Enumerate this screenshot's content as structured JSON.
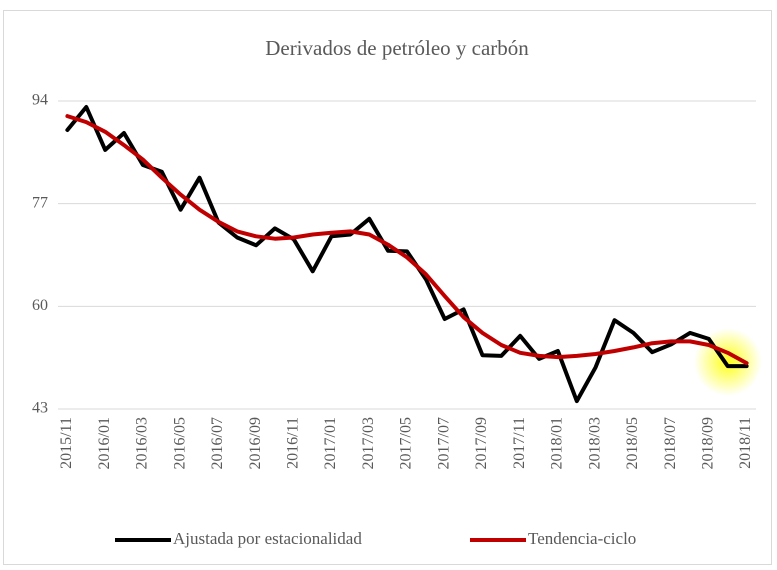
{
  "chart_data": {
    "type": "line",
    "title": "Derivados de petróleo y carbón",
    "categories": [
      "2015/11",
      null,
      "2016/01",
      null,
      "2016/03",
      null,
      "2016/05",
      null,
      "2016/07",
      null,
      "2016/09",
      null,
      "2016/11",
      null,
      "2017/01",
      null,
      "2017/03",
      null,
      "2017/05",
      null,
      "2017/07",
      null,
      "2017/09",
      null,
      "2017/11",
      null,
      "2018/01",
      null,
      "2018/03",
      null,
      "2018/05",
      null,
      "2018/07",
      null,
      "2018/09",
      null,
      "2018/11"
    ],
    "series": [
      {
        "name": "Ajustada por estacionalidad",
        "color": "#000000",
        "values": [
          89.2,
          93,
          85.9,
          88.7,
          83.4,
          82.3,
          76,
          81.3,
          73.9,
          71.4,
          70.1,
          72.9,
          71.1,
          65.8,
          71.6,
          71.9,
          74.5,
          69.2,
          69.1,
          64.5,
          57.9,
          59.5,
          51.9,
          51.8,
          55.1,
          51.3,
          52.6,
          44.3,
          49.9,
          57.7,
          55.6,
          52.4,
          53.7,
          55.6,
          54.6,
          50.1,
          50.1
        ]
      },
      {
        "name": "Tendencia-ciclo",
        "color": "#c00000",
        "values": [
          91.5,
          90.5,
          88.9,
          86.7,
          84.3,
          81.3,
          78.5,
          76,
          74,
          72.4,
          71.6,
          71.2,
          71.4,
          71.9,
          72.2,
          72.4,
          71.9,
          70.2,
          68.1,
          65.3,
          61.7,
          58.2,
          55.6,
          53.6,
          52.3,
          51.8,
          51.6,
          51.8,
          52.1,
          52.6,
          53.2,
          53.9,
          54.2,
          54.2,
          53.6,
          52.3,
          50.6
        ]
      }
    ],
    "ylim": [
      43,
      94
    ],
    "yticks": [
      43,
      60,
      77,
      94
    ],
    "grid": true,
    "legend": "bottom"
  }
}
